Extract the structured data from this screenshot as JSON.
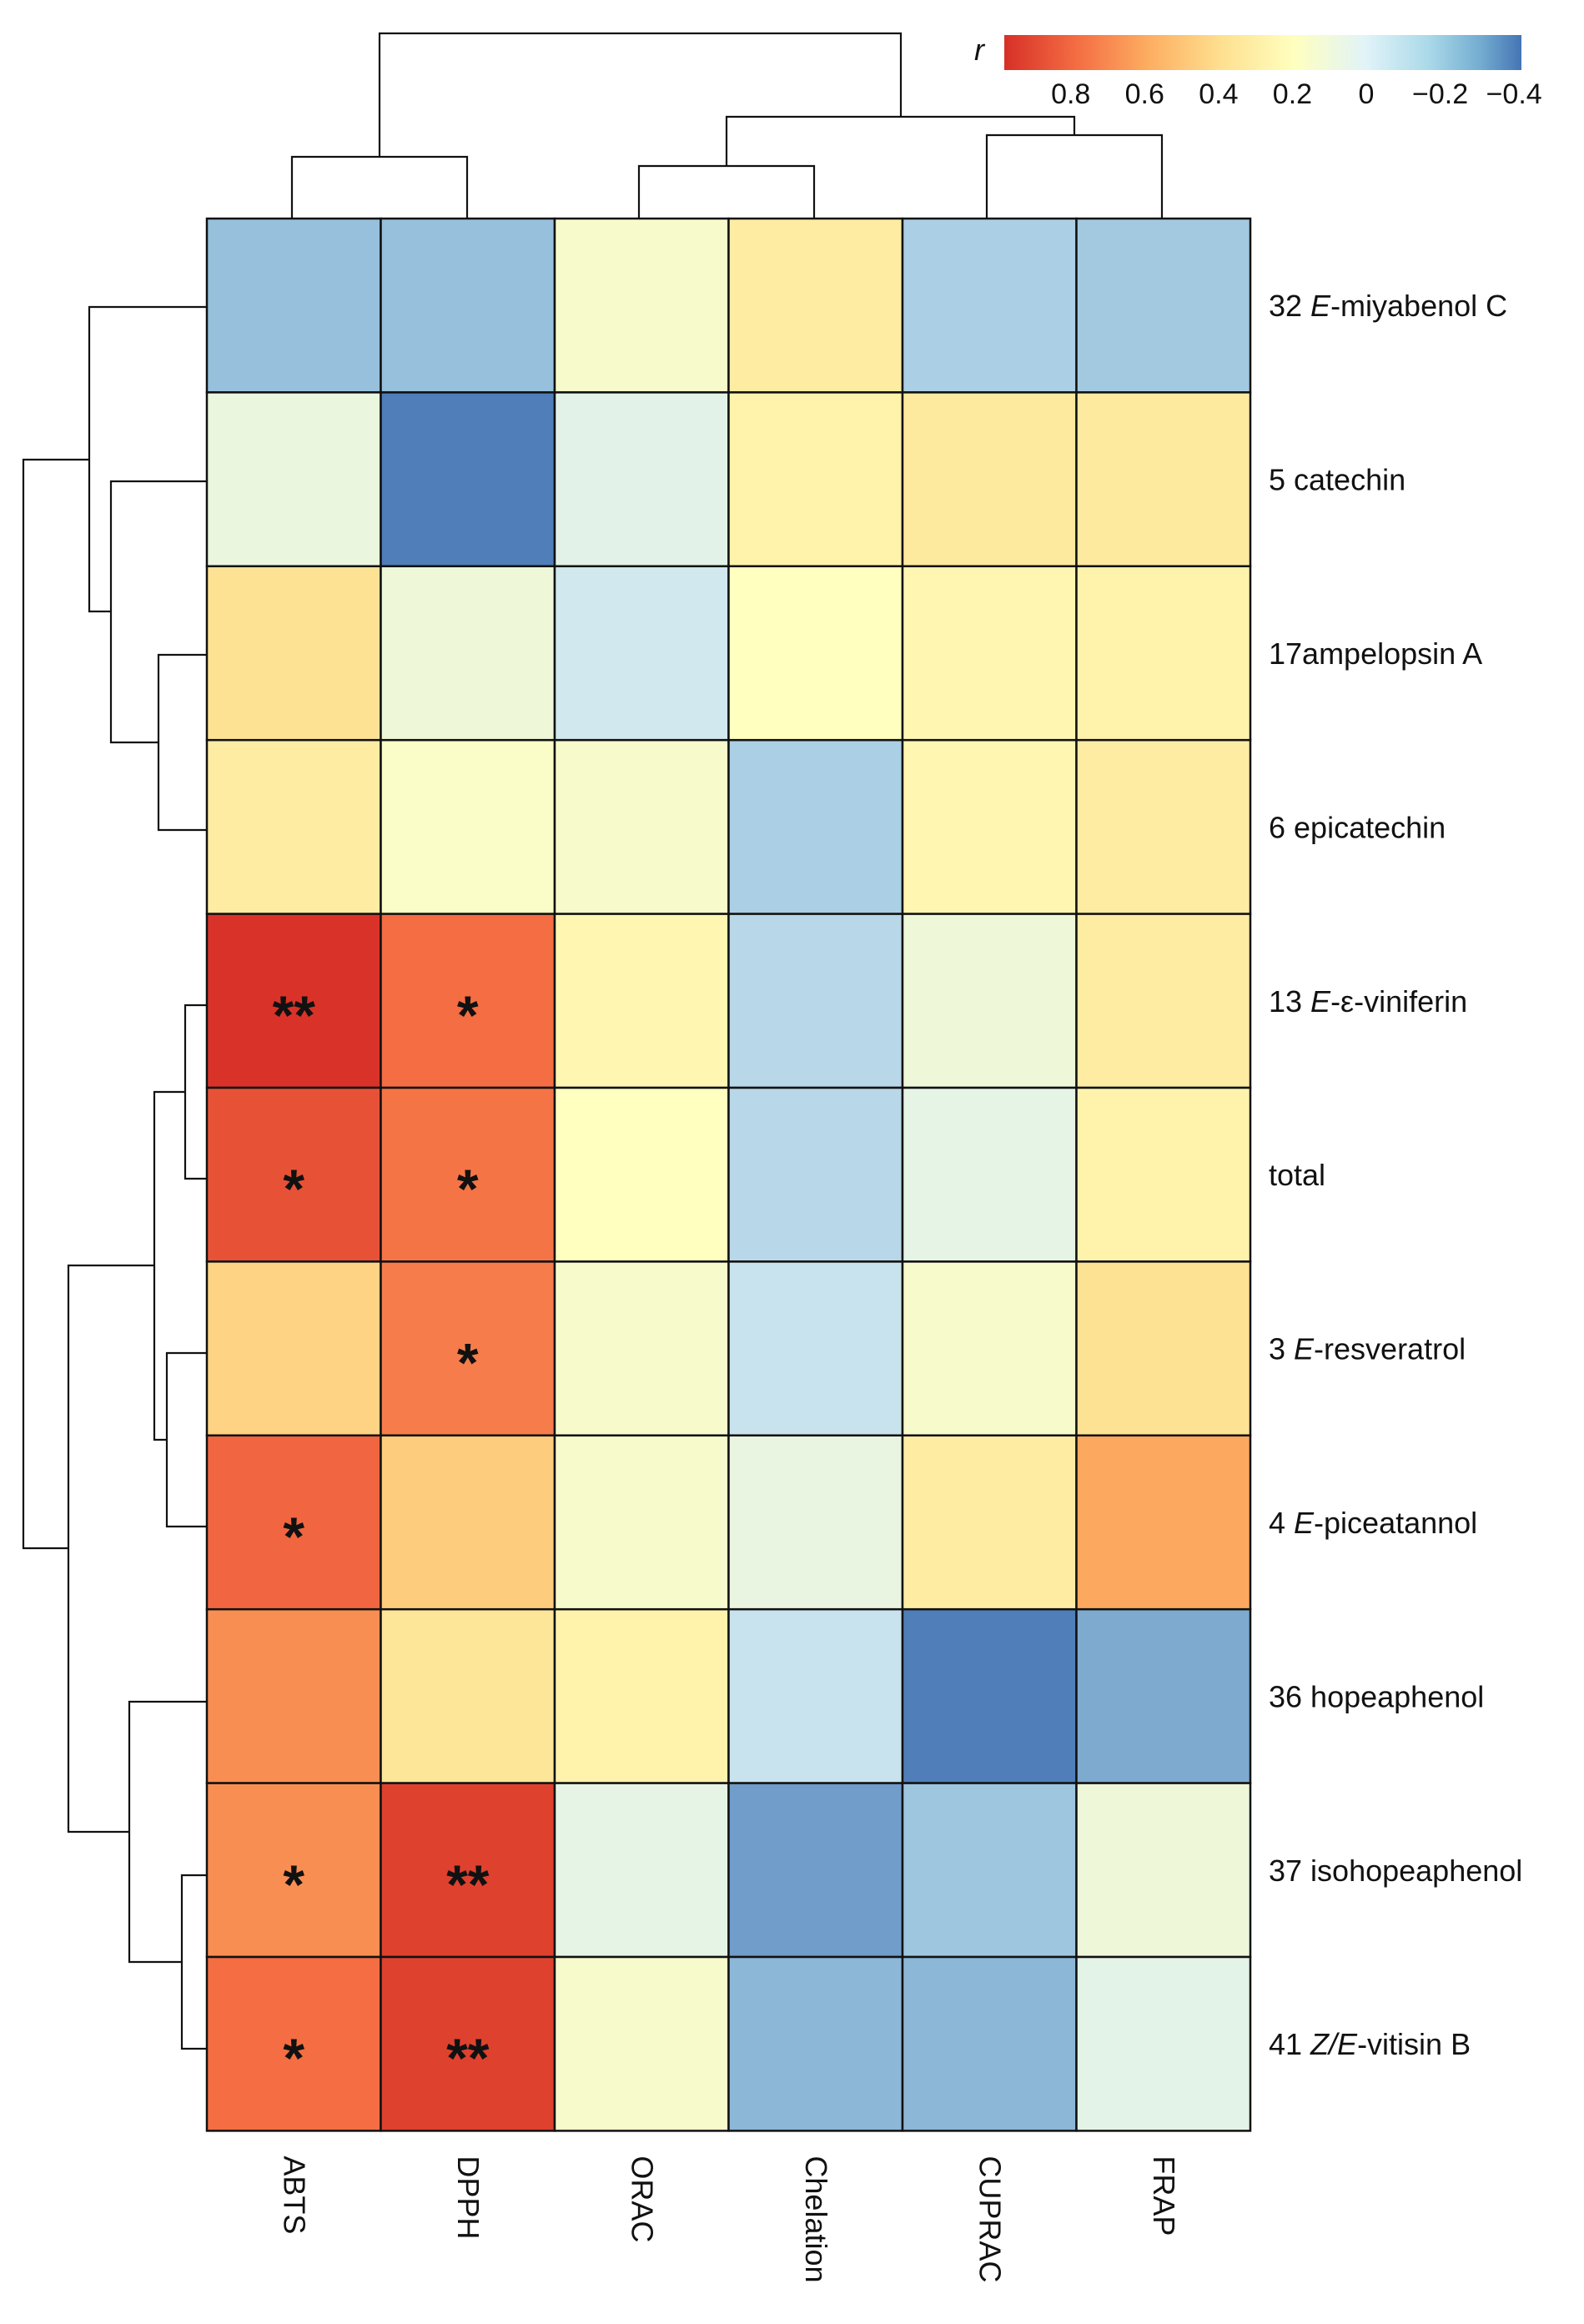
{
  "chart_data": {
    "type": "heatmap",
    "title": "",
    "colorbar": {
      "title": "r",
      "ticks": [
        "0.8",
        "0.6",
        "0.4",
        "0.2",
        "0",
        "−0.2",
        "−0.4"
      ],
      "tick_values": [
        0.8,
        0.6,
        0.4,
        0.2,
        0,
        -0.2,
        -0.4
      ],
      "range": [
        0.98,
        -0.42
      ],
      "colors": {
        "high": "#d73027",
        "mid_high": "#fc8d59",
        "mid": "#fee090",
        "center": "#ffffbf",
        "mid_low": "#e0f3f8",
        "low": "#91bfdb",
        "lowest": "#4575b4"
      }
    },
    "columns": [
      "ABTS",
      "DPPH",
      "ORAC",
      "Chelation",
      "CUPRAC",
      "FRAP"
    ],
    "rows": [
      {
        "number": "32",
        "prefix": "E",
        "name": "-miyabenol C"
      },
      {
        "number": "5",
        "prefix": "",
        "name": "catechin"
      },
      {
        "number": "17",
        "prefix": "",
        "name": "ampelopsin A"
      },
      {
        "number": "6",
        "prefix": "",
        "name": "epicatechin"
      },
      {
        "number": "13",
        "prefix": "E",
        "name": "-ε-viniferin"
      },
      {
        "number": "",
        "prefix": "",
        "name": "total"
      },
      {
        "number": "3",
        "prefix": "E",
        "name": "-resveratrol"
      },
      {
        "number": "4",
        "prefix": "E",
        "name": "-piceatannol"
      },
      {
        "number": "36",
        "prefix": "",
        "name": "hopeaphenol"
      },
      {
        "number": "37",
        "prefix": "",
        "name": "isohopeaphenol"
      },
      {
        "number": "41",
        "prefix": "Z/E",
        "name": "-vitisin B"
      }
    ],
    "values": [
      [
        -0.25,
        -0.25,
        0.1,
        0.3,
        -0.2,
        -0.22
      ],
      [
        0.03,
        -0.4,
        -0.02,
        0.25,
        0.32,
        0.32
      ],
      [
        0.38,
        0.05,
        -0.1,
        0.15,
        0.22,
        0.25
      ],
      [
        0.3,
        0.12,
        0.1,
        -0.2,
        0.22,
        0.3
      ],
      [
        0.97,
        0.8,
        0.22,
        -0.17,
        0.05,
        0.3
      ],
      [
        0.88,
        0.78,
        0.15,
        -0.17,
        0.0,
        0.25
      ],
      [
        0.45,
        0.75,
        0.1,
        -0.13,
        0.1,
        0.38
      ],
      [
        0.82,
        0.48,
        0.1,
        0.02,
        0.3,
        0.62
      ],
      [
        0.7,
        0.35,
        0.25,
        -0.13,
        -0.4,
        -0.3
      ],
      [
        0.7,
        0.93,
        0.0,
        -0.33,
        -0.23,
        0.05
      ],
      [
        0.8,
        0.93,
        0.1,
        -0.27,
        -0.27,
        -0.01
      ]
    ],
    "significance": [
      [
        "",
        "",
        "",
        "",
        "",
        ""
      ],
      [
        "",
        "",
        "",
        "",
        "",
        ""
      ],
      [
        "",
        "",
        "",
        "",
        "",
        ""
      ],
      [
        "",
        "",
        "",
        "",
        "",
        ""
      ],
      [
        "**",
        "*",
        "",
        "",
        "",
        ""
      ],
      [
        "*",
        "*",
        "",
        "",
        "",
        ""
      ],
      [
        "",
        "*",
        "",
        "",
        "",
        ""
      ],
      [
        "*",
        "",
        "",
        "",
        "",
        ""
      ],
      [
        "",
        "",
        "",
        "",
        "",
        ""
      ],
      [
        "*",
        "**",
        "",
        "",
        "",
        ""
      ],
      [
        "*",
        "**",
        "",
        "",
        "",
        ""
      ]
    ],
    "column_clustering": [
      [
        "ABTS",
        "DPPH"
      ],
      [
        [
          "ORAC",
          "Chelation"
        ],
        [
          "CUPRAC",
          "FRAP"
        ]
      ]
    ],
    "row_clustering": [
      [
        "32 E-miyabenol C",
        [
          "5 catechin",
          [
            "17ampelopsin A",
            "6 epicatechin"
          ]
        ]
      ],
      [
        [
          [
            [
              "13 E-ε-viniferin",
              "total"
            ]
          ],
          [
            "3 E-resveratrol",
            "4 E-piceatannol"
          ]
        ],
        [
          "36 hopeaphenol",
          [
            "37 isohopeaphenol",
            "41 Z/E-vitisin B"
          ]
        ]
      ]
    ]
  }
}
